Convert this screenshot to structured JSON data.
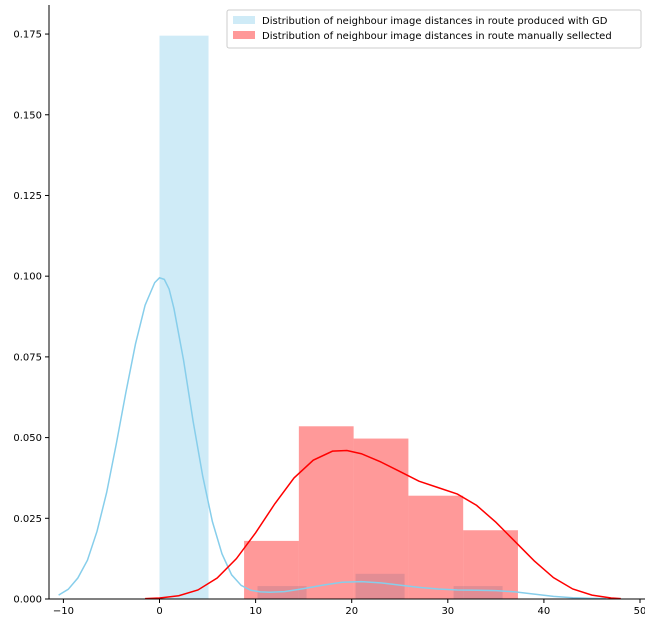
{
  "chart_data": {
    "type": "bar",
    "xlim": [
      -11.5,
      50
    ],
    "ylim": [
      0,
      0.184
    ],
    "xticks": [
      -10,
      0,
      10,
      20,
      30,
      40,
      50
    ],
    "xtick_labels": [
      "−10",
      "0",
      "10",
      "20",
      "30",
      "40",
      "50"
    ],
    "yticks": [
      0,
      0.025,
      0.05,
      0.075,
      0.1,
      0.125,
      0.15,
      0.175
    ],
    "ytick_labels": [
      "0.000",
      "0.025",
      "0.050",
      "0.075",
      "0.100",
      "0.125",
      "0.150",
      "0.175"
    ],
    "grid": false,
    "legend_position": "top-right",
    "series": [
      {
        "name": "Distribution of neighbour image distances in route produced with GD",
        "hist_color": "#87ceeb",
        "hist_opacity": 0.4,
        "kde_color": "#87ceeb",
        "bins": [
          {
            "x0": 0.0,
            "x1": 5.1,
            "height": 0.1745
          },
          {
            "x0": 10.2,
            "x1": 15.3,
            "height": 0.004
          },
          {
            "x0": 20.4,
            "x1": 25.5,
            "height": 0.0078
          },
          {
            "x0": 30.6,
            "x1": 35.7,
            "height": 0.004
          }
        ],
        "kde": [
          [
            -10.5,
            0.0012
          ],
          [
            -9.5,
            0.003
          ],
          [
            -8.5,
            0.0065
          ],
          [
            -7.5,
            0.012
          ],
          [
            -6.5,
            0.021
          ],
          [
            -5.5,
            0.033
          ],
          [
            -4.5,
            0.048
          ],
          [
            -3.5,
            0.064
          ],
          [
            -2.5,
            0.079
          ],
          [
            -1.5,
            0.091
          ],
          [
            -0.5,
            0.098
          ],
          [
            0.0,
            0.0995
          ],
          [
            0.5,
            0.099
          ],
          [
            1.0,
            0.096
          ],
          [
            1.5,
            0.09
          ],
          [
            2.5,
            0.074
          ],
          [
            3.5,
            0.055
          ],
          [
            4.5,
            0.038
          ],
          [
            5.5,
            0.024
          ],
          [
            6.5,
            0.014
          ],
          [
            7.5,
            0.0075
          ],
          [
            8.5,
            0.0042
          ],
          [
            9.5,
            0.0027
          ],
          [
            10.5,
            0.0022
          ],
          [
            11.5,
            0.0021
          ],
          [
            13.0,
            0.0023
          ],
          [
            15.0,
            0.0032
          ],
          [
            17.0,
            0.0043
          ],
          [
            19.0,
            0.0052
          ],
          [
            21.0,
            0.0054
          ],
          [
            23.0,
            0.005
          ],
          [
            25.0,
            0.0043
          ],
          [
            27.0,
            0.0036
          ],
          [
            29.0,
            0.0031
          ],
          [
            31.0,
            0.0028
          ],
          [
            33.0,
            0.0027
          ],
          [
            35.0,
            0.0026
          ],
          [
            37.0,
            0.0022
          ],
          [
            39.0,
            0.0015
          ],
          [
            41.0,
            0.0008
          ],
          [
            43.0,
            0.0004
          ],
          [
            45.0,
            0.0002
          ],
          [
            46.5,
            0.0001
          ]
        ]
      },
      {
        "name": "Distribution of neighbour image distances in route manually sellected",
        "hist_color": "#ff0000",
        "hist_opacity": 0.4,
        "kde_color": "#ff0000",
        "bins": [
          {
            "x0": 8.8,
            "x1": 14.5,
            "height": 0.018
          },
          {
            "x0": 14.5,
            "x1": 20.2,
            "height": 0.0535
          },
          {
            "x0": 20.2,
            "x1": 25.9,
            "height": 0.0497
          },
          {
            "x0": 25.9,
            "x1": 31.6,
            "height": 0.032
          },
          {
            "x0": 31.6,
            "x1": 37.3,
            "height": 0.0213
          }
        ],
        "kde": [
          [
            -1.5,
            0.0001
          ],
          [
            0.0,
            0.0003
          ],
          [
            2.0,
            0.001
          ],
          [
            4.0,
            0.0028
          ],
          [
            6.0,
            0.0065
          ],
          [
            8.0,
            0.0125
          ],
          [
            10.0,
            0.0205
          ],
          [
            12.0,
            0.0295
          ],
          [
            14.0,
            0.0375
          ],
          [
            16.0,
            0.043
          ],
          [
            18.0,
            0.0458
          ],
          [
            19.5,
            0.046
          ],
          [
            21.0,
            0.045
          ],
          [
            23.0,
            0.0425
          ],
          [
            25.0,
            0.0395
          ],
          [
            27.0,
            0.0365
          ],
          [
            29.0,
            0.0345
          ],
          [
            31.0,
            0.0325
          ],
          [
            33.0,
            0.029
          ],
          [
            35.0,
            0.0238
          ],
          [
            37.0,
            0.0178
          ],
          [
            39.0,
            0.0118
          ],
          [
            41.0,
            0.0066
          ],
          [
            43.0,
            0.0031
          ],
          [
            45.0,
            0.0012
          ],
          [
            47.0,
            0.0003
          ],
          [
            48.0,
            0.0001
          ]
        ]
      }
    ]
  }
}
